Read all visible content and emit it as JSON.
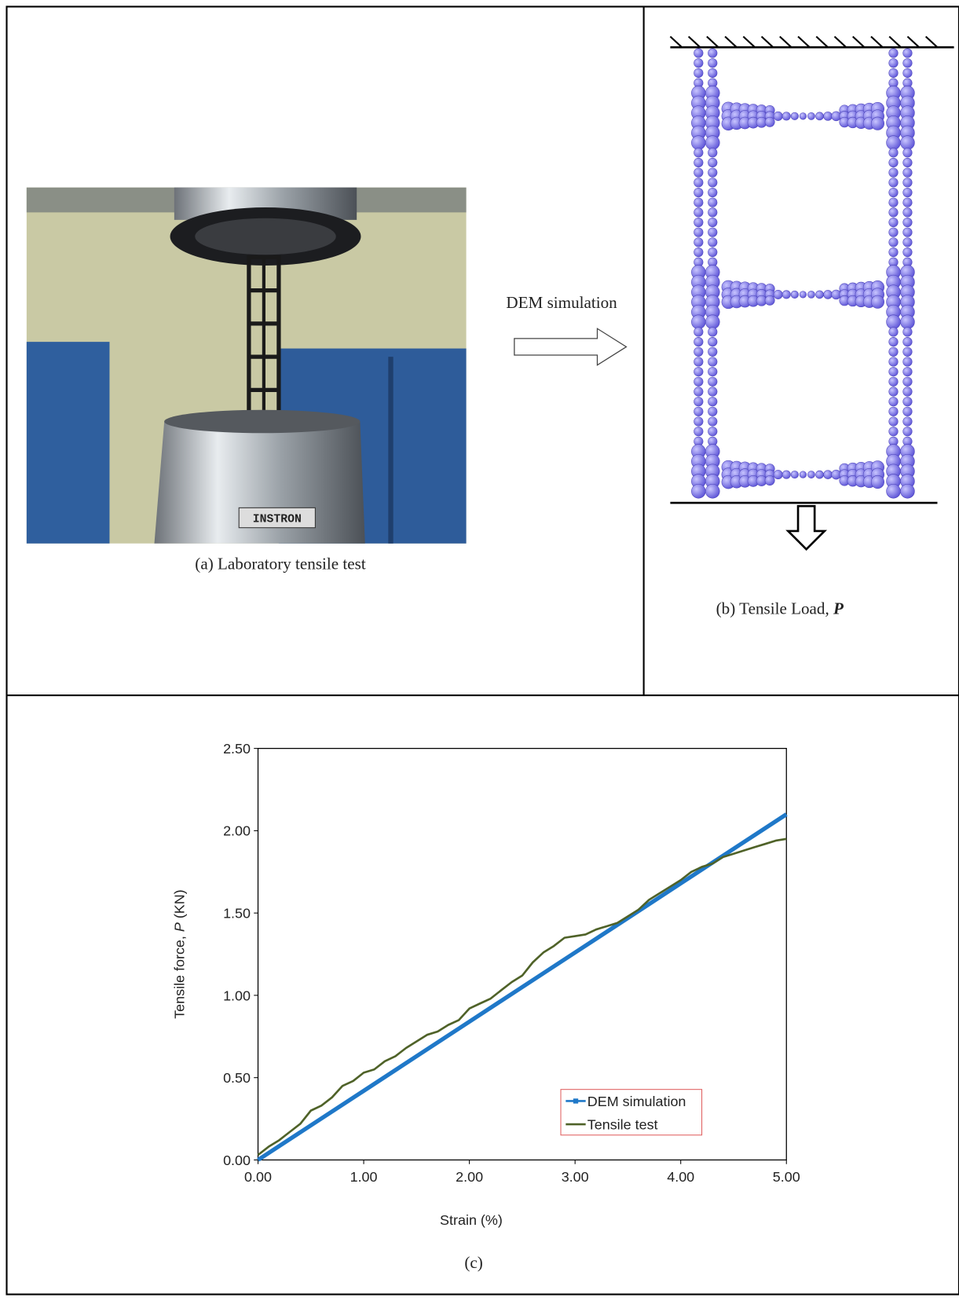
{
  "panel_a": {
    "photo_label": "INSTRON",
    "caption": "(a) Laboratory tensile test"
  },
  "arrow_label": "DEM simulation",
  "panel_b": {
    "caption": "(b) Tensile Load,",
    "symbol": "P"
  },
  "chart_data": {
    "type": "line",
    "caption": "(c)",
    "xlabel": "Strain (%)",
    "ylabel": {
      "text": "Tensile force,",
      "symbol": "P",
      "unit": "(KN)"
    },
    "xlim": [
      0,
      5
    ],
    "ylim": [
      0,
      2.5
    ],
    "xticks": [
      {
        "value": 0,
        "label": "0.00"
      },
      {
        "value": 1,
        "label": "1.00"
      },
      {
        "value": 2,
        "label": "2.00"
      },
      {
        "value": 3,
        "label": "3.00"
      },
      {
        "value": 4,
        "label": "4.00"
      },
      {
        "value": 5,
        "label": "5.00"
      }
    ],
    "yticks": [
      {
        "value": 0,
        "label": "0.00"
      },
      {
        "value": 0.5,
        "label": "0.50"
      },
      {
        "value": 1,
        "label": "1.00"
      },
      {
        "value": 1.5,
        "label": "1.50"
      },
      {
        "value": 2,
        "label": "2.00"
      },
      {
        "value": 2.5,
        "label": "2.50"
      }
    ],
    "legend": "lower right",
    "series": [
      {
        "name": "DEM simulation",
        "color": "#1f78c8",
        "x": [
          0,
          0.5,
          1,
          1.5,
          2,
          2.5,
          3,
          3.5,
          4,
          4.5,
          5
        ],
        "values": [
          0,
          0.21,
          0.42,
          0.63,
          0.84,
          1.05,
          1.26,
          1.47,
          1.68,
          1.89,
          2.1
        ]
      },
      {
        "name": "Tensile test",
        "color": "#4f6228",
        "x": [
          0,
          0.1,
          0.2,
          0.3,
          0.4,
          0.5,
          0.6,
          0.7,
          0.8,
          0.9,
          1,
          1.1,
          1.2,
          1.3,
          1.4,
          1.5,
          1.6,
          1.7,
          1.8,
          1.9,
          2,
          2.1,
          2.2,
          2.3,
          2.4,
          2.5,
          2.6,
          2.7,
          2.8,
          2.9,
          3,
          3.1,
          3.2,
          3.3,
          3.4,
          3.5,
          3.6,
          3.7,
          3.8,
          3.9,
          4,
          4.1,
          4.2,
          4.3,
          4.4,
          4.5,
          4.6,
          4.7,
          4.8,
          4.9,
          5
        ],
        "values": [
          0.03,
          0.08,
          0.12,
          0.17,
          0.22,
          0.3,
          0.33,
          0.38,
          0.45,
          0.48,
          0.53,
          0.55,
          0.6,
          0.63,
          0.68,
          0.72,
          0.76,
          0.78,
          0.82,
          0.85,
          0.92,
          0.95,
          0.98,
          1.03,
          1.08,
          1.12,
          1.2,
          1.26,
          1.3,
          1.35,
          1.36,
          1.37,
          1.4,
          1.42,
          1.44,
          1.48,
          1.52,
          1.58,
          1.62,
          1.66,
          1.7,
          1.75,
          1.78,
          1.8,
          1.84,
          1.86,
          1.88,
          1.9,
          1.92,
          1.94,
          1.95
        ]
      }
    ]
  }
}
